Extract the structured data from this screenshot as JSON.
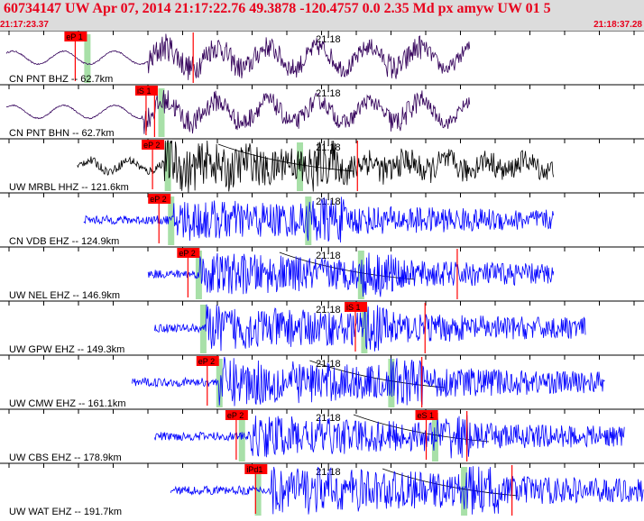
{
  "header": {
    "title": "60734147 UW Apr 07, 2014 21:17:22.76   49.3878 -120.4757  0.0 2.35 Md px amyw UW 01   5",
    "start_time": "21:17:23.37",
    "end_time": "21:18:37.28"
  },
  "colors": {
    "accent": "#e8001c",
    "header_bg": "#dcdcdc",
    "trace_dark": "#33005a",
    "trace_black": "#000000",
    "trace_blue": "#0000ff",
    "pick_box": "#ff0000",
    "window_green": "#a8e0a8"
  },
  "minute_label": "21:18",
  "traces": [
    {
      "label": "CN PNT BHZ -- 62.7km",
      "color": "dark",
      "start": 0.01,
      "end": 0.73,
      "onset": 0.23,
      "amp": 0.35,
      "lowfreq": true,
      "picks": [
        {
          "label": "eP 1",
          "pos": 0.1
        }
      ],
      "green": [
        0.135
      ],
      "redlines": [
        0.3
      ],
      "curve": false
    },
    {
      "label": "CN PNT BHN -- 62.7km",
      "color": "dark",
      "start": 0.01,
      "end": 0.73,
      "onset": 0.22,
      "amp": 0.3,
      "lowfreq": true,
      "picks": [
        {
          "label": "iS 1",
          "pos": 0.21
        }
      ],
      "green": [
        0.25
      ],
      "redlines": [
        0.24
      ],
      "curve": false
    },
    {
      "label": "UW MRBL HHZ -- 121.6km",
      "color": "black",
      "start": 0.12,
      "end": 0.86,
      "onset": 0.255,
      "amp": 0.35,
      "lowfreq": false,
      "picks": [
        {
          "label": "eP 2",
          "pos": 0.22
        }
      ],
      "green": [
        0.26,
        0.465
      ],
      "redlines": [
        0.555
      ],
      "curve": true
    },
    {
      "label": "CN VDB EHZ -- 124.9km",
      "color": "blue",
      "start": 0.13,
      "end": 0.86,
      "onset": 0.27,
      "amp": 0.32,
      "lowfreq": false,
      "picks": [
        {
          "label": "eP 2",
          "pos": 0.23
        }
      ],
      "green": [
        0.265,
        0.478
      ],
      "redlines": [],
      "curve": false
    },
    {
      "label": "UW NEL EHZ -- 146.9km",
      "color": "blue",
      "start": 0.23,
      "end": 0.86,
      "onset": 0.31,
      "amp": 0.32,
      "lowfreq": false,
      "picks": [
        {
          "label": "eP 2",
          "pos": 0.275
        }
      ],
      "green": [
        0.308,
        0.56
      ],
      "redlines": [
        0.71
      ],
      "curve": true
    },
    {
      "label": "UW GPW EHZ -- 149.3km",
      "color": "blue",
      "start": 0.24,
      "end": 0.91,
      "onset": 0.32,
      "amp": 0.34,
      "lowfreq": false,
      "picks": [
        {
          "label": "iS 1",
          "pos": 0.535
        }
      ],
      "green": [
        0.315,
        0.565
      ],
      "redlines": [
        0.66
      ],
      "curve": false
    },
    {
      "label": "UW CMW EHZ -- 161.1km",
      "color": "blue",
      "start": 0.205,
      "end": 0.94,
      "onset": 0.34,
      "amp": 0.38,
      "lowfreq": false,
      "picks": [
        {
          "label": "eP 2",
          "pos": 0.305
        }
      ],
      "green": [
        0.34,
        0.607
      ],
      "redlines": [
        0.655
      ],
      "curve": true
    },
    {
      "label": "UW CBS EHZ -- 178.9km",
      "color": "blue",
      "start": 0.24,
      "end": 0.97,
      "onset": 0.39,
      "amp": 0.32,
      "lowfreq": false,
      "picks": [
        {
          "label": "eP 2",
          "pos": 0.35
        },
        {
          "label": "eS 1",
          "pos": 0.645
        }
      ],
      "green": [
        0.375,
        0.675
      ],
      "redlines": [
        0.725
      ],
      "curve": true
    },
    {
      "label": "UW WAT EHZ -- 191.7km",
      "color": "blue",
      "start": 0.265,
      "end": 1.0,
      "onset": 0.42,
      "amp": 0.4,
      "lowfreq": false,
      "picks": [
        {
          "label": "iPd1",
          "pos": 0.38
        }
      ],
      "green": [
        0.4,
        0.72
      ],
      "redlines": [
        0.795
      ],
      "curve": true
    }
  ]
}
